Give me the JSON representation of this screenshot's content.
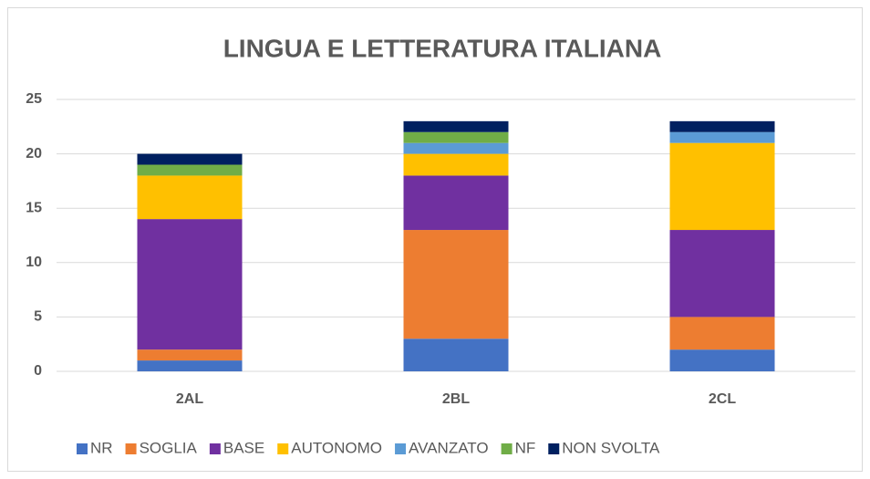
{
  "chart_data": {
    "type": "stacked_bar",
    "title": "LINGUA E LETTERATURA ITALIANA",
    "categories": [
      "2AL",
      "2BL",
      "2CL"
    ],
    "series": [
      {
        "name": "NR",
        "color": "#4472c4",
        "values": [
          1,
          3,
          2
        ]
      },
      {
        "name": "SOGLIA",
        "color": "#ed7d31",
        "values": [
          1,
          10,
          3
        ]
      },
      {
        "name": "BASE",
        "color": "#7030a0",
        "values": [
          12,
          5,
          8
        ]
      },
      {
        "name": "AUTONOMO",
        "color": "#ffc000",
        "values": [
          4,
          2,
          8
        ]
      },
      {
        "name": "AVANZATO",
        "color": "#5b9bd5",
        "values": [
          0,
          1,
          1
        ]
      },
      {
        "name": "NF",
        "color": "#70ad47",
        "values": [
          1,
          1,
          0
        ]
      },
      {
        "name": "NON SVOLTA",
        "color": "#002060",
        "values": [
          1,
          1,
          1
        ]
      }
    ],
    "ylim": [
      0,
      25
    ],
    "yticks": [
      0,
      5,
      10,
      15,
      20,
      25
    ],
    "grid": true,
    "legend": "bottom"
  }
}
